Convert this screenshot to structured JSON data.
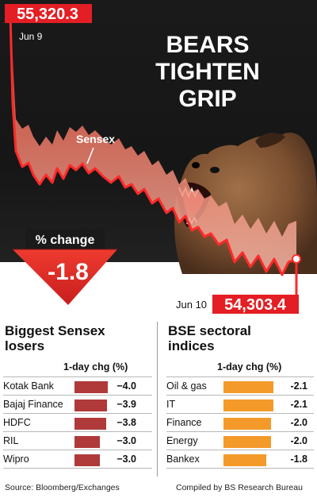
{
  "headline": [
    "BEARS",
    "TIGHTEN",
    "GRIP"
  ],
  "chart_data": {
    "type": "line",
    "series": [
      {
        "name": "Sensex"
      }
    ],
    "start": {
      "label": "Jun 9",
      "value": "55,320.3"
    },
    "end": {
      "label": "Jun 10",
      "value": "54,303.4"
    },
    "annotation": "Sensex"
  },
  "pct_change": {
    "label": "% change",
    "value": "-1.8"
  },
  "losers": {
    "title": [
      "Biggest Sensex",
      "losers"
    ],
    "column_label": "1-day chg (%)",
    "rows": [
      {
        "name": "Kotak Bank",
        "value": -4.0,
        "display": "−4.0"
      },
      {
        "name": "Bajaj Finance",
        "value": -3.9,
        "display": "−3.9"
      },
      {
        "name": "HDFC",
        "value": -3.8,
        "display": "−3.8"
      },
      {
        "name": "RIL",
        "value": -3.0,
        "display": "−3.0"
      },
      {
        "name": "Wipro",
        "value": -3.0,
        "display": "−3.0"
      }
    ]
  },
  "sectoral": {
    "title": [
      "BSE sectoral",
      "indices"
    ],
    "column_label": "1-day chg (%)",
    "rows": [
      {
        "name": "Oil & gas",
        "value": -2.1,
        "display": "-2.1"
      },
      {
        "name": "IT",
        "value": -2.1,
        "display": "-2.1"
      },
      {
        "name": "Finance",
        "value": -2.0,
        "display": "-2.0"
      },
      {
        "name": "Energy",
        "value": -2.0,
        "display": "-2.0"
      },
      {
        "name": "Bankex",
        "value": -1.8,
        "display": "-1.8"
      }
    ]
  },
  "source": "Source: Bloomberg/Exchanges",
  "credit": "Compiled by BS Research Bureau",
  "colors": {
    "red": "#e31e24",
    "dark_red": "#a31f22",
    "loser_bar": "#b03a3a",
    "sector_bar": "#f39a2b",
    "background_dark": "#141414"
  }
}
